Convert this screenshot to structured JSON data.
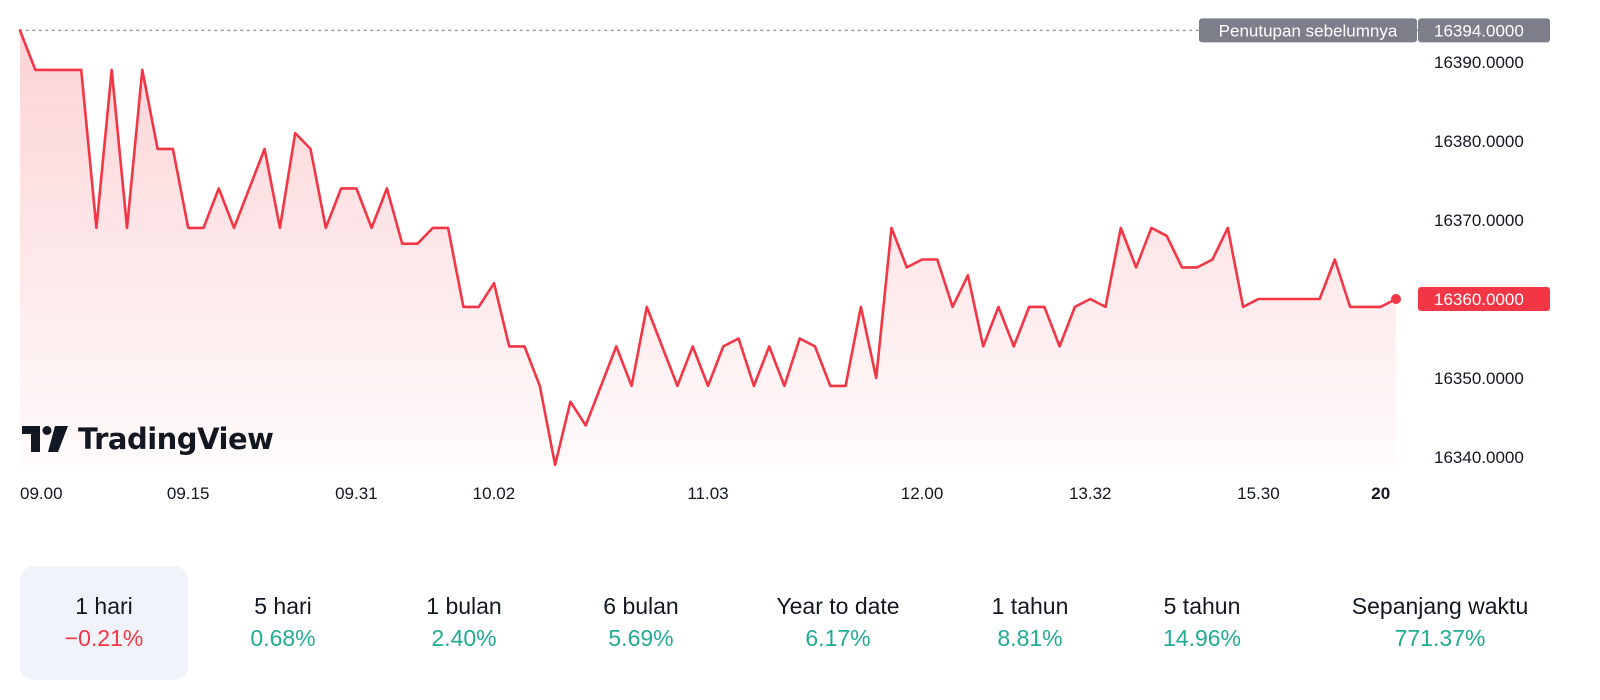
{
  "chart_data": {
    "type": "area",
    "brand": "TradingView",
    "line_color": "#f23645",
    "fill_color": "#f23645",
    "y_ticks": [
      "16390.0000",
      "16380.0000",
      "16370.0000",
      "16360.0000",
      "16350.0000",
      "16340.0000"
    ],
    "y_tick_values": [
      16390,
      16380,
      16370,
      16360,
      16350,
      16340
    ],
    "ylim": [
      16337,
      16395
    ],
    "x_ticks": [
      {
        "label": "09.00",
        "index": 0,
        "bold": false
      },
      {
        "label": "09.15",
        "index": 11,
        "bold": false
      },
      {
        "label": "09.31",
        "index": 22,
        "bold": false
      },
      {
        "label": "10.02",
        "index": 31,
        "bold": false
      },
      {
        "label": "11.03",
        "index": 45,
        "bold": false
      },
      {
        "label": "12.00",
        "index": 59,
        "bold": false
      },
      {
        "label": "13.32",
        "index": 70,
        "bold": false
      },
      {
        "label": "15.30",
        "index": 81,
        "bold": false
      },
      {
        "label": "20",
        "index": 89,
        "bold": true
      }
    ],
    "previous_close": {
      "label": "Penutupan sebelumnya",
      "value": "16394.0000",
      "numeric": 16394
    },
    "last_price": {
      "value": "16360.0000",
      "numeric": 16360
    },
    "values": [
      16394,
      16389,
      16389,
      16389,
      16389,
      16369,
      16389,
      16369,
      16389,
      16379,
      16379,
      16369,
      16369,
      16374,
      16369,
      16374,
      16379,
      16369,
      16381,
      16379,
      16369,
      16374,
      16374,
      16369,
      16374,
      16367,
      16367,
      16369,
      16369,
      16359,
      16359,
      16362,
      16354,
      16354,
      16349,
      16339,
      16347,
      16344,
      16349,
      16354,
      16349,
      16359,
      16354,
      16349,
      16354,
      16349,
      16354,
      16355,
      16349,
      16354,
      16349,
      16355,
      16354,
      16349,
      16349,
      16359,
      16350,
      16369,
      16364,
      16365,
      16365,
      16359,
      16363,
      16354,
      16359,
      16354,
      16359,
      16359,
      16354,
      16359,
      16360,
      16359,
      16369,
      16364,
      16369,
      16368,
      16364,
      16364,
      16365,
      16369,
      16359,
      16360,
      16360,
      16360,
      16360,
      16360,
      16365,
      16359,
      16359,
      16359,
      16360
    ]
  },
  "periods": [
    {
      "label": "1 hari",
      "value": "−0.21%",
      "sign": "neg",
      "active": true
    },
    {
      "label": "5 hari",
      "value": "0.68%",
      "sign": "pos",
      "active": false
    },
    {
      "label": "1 bulan",
      "value": "2.40%",
      "sign": "pos",
      "active": false
    },
    {
      "label": "6 bulan",
      "value": "5.69%",
      "sign": "pos",
      "active": false
    },
    {
      "label": "Year to date",
      "value": "6.17%",
      "sign": "pos",
      "active": false
    },
    {
      "label": "1 tahun",
      "value": "8.81%",
      "sign": "pos",
      "active": false
    },
    {
      "label": "5 tahun",
      "value": "14.96%",
      "sign": "pos",
      "active": false
    },
    {
      "label": "Sepanjang waktu",
      "value": "771.37%",
      "sign": "pos",
      "active": false
    }
  ]
}
